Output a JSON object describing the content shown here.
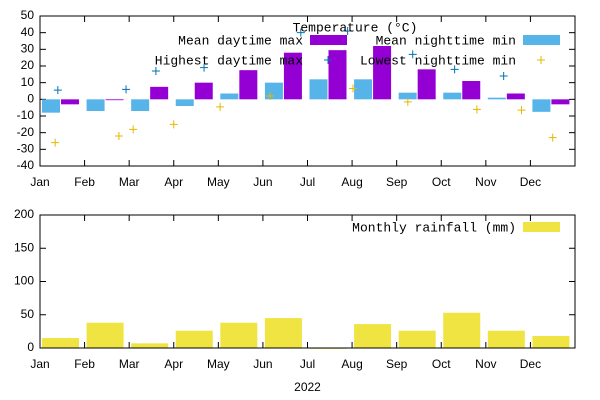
{
  "chart_data": [
    {
      "type": "bar",
      "title": "Temperature (°C)",
      "categories": [
        "Jan",
        "Feb",
        "Mar",
        "Apr",
        "May",
        "Jun",
        "Jul",
        "Aug",
        "Sep",
        "Oct",
        "Nov",
        "Dec"
      ],
      "ylim": [
        -40,
        50
      ],
      "yticks": [
        -40,
        -30,
        -20,
        -10,
        0,
        10,
        20,
        30,
        40,
        50
      ],
      "series": [
        {
          "name": "Mean daytime max",
          "mark": "bar",
          "color": "#9400d3",
          "values": [
            -3,
            -0.5,
            7.5,
            10,
            17.5,
            28,
            29.5,
            32,
            18,
            11,
            3.5,
            -3
          ]
        },
        {
          "name": "Mean nighttime min",
          "mark": "bar",
          "color": "#56b4e9",
          "values": [
            -8,
            -7,
            -7,
            -4,
            3.5,
            10,
            12,
            12,
            4,
            4,
            1,
            -7.5
          ]
        },
        {
          "name": "Highest daytime max",
          "mark": "point",
          "color": "#0072b2",
          "x": [
            0.4,
            1.93,
            2.6,
            3.68,
            5.85,
            6.9,
            8.36,
            9.3,
            10.4
          ],
          "values": [
            5.5,
            6,
            17,
            19,
            40,
            41,
            27,
            18,
            14
          ]
        },
        {
          "name": "Lowest nighttime min",
          "mark": "point",
          "color": "#e6b800",
          "x": [
            0.34,
            1.77,
            2.09,
            3.0,
            4.04,
            5.16,
            7.02,
            8.25,
            9.8,
            10.8,
            11.5
          ],
          "values": [
            -26,
            -22,
            -18,
            -15,
            -4.5,
            2,
            6.5,
            -1.5,
            -6,
            -6.5,
            -23
          ]
        }
      ]
    },
    {
      "type": "bar",
      "xlabel": "2022",
      "categories": [
        "Jan",
        "Feb",
        "Mar",
        "Apr",
        "May",
        "Jun",
        "Jul",
        "Aug",
        "Sep",
        "Oct",
        "Nov",
        "Dec"
      ],
      "ylim": [
        0,
        200
      ],
      "yticks": [
        0,
        50,
        100,
        150,
        200
      ],
      "series": [
        {
          "name": "Monthly rainfall (mm)",
          "mark": "bar",
          "color": "#f0e442",
          "values": [
            15,
            38,
            7,
            26,
            38,
            45,
            0,
            36,
            26,
            53,
            26,
            18
          ]
        }
      ]
    }
  ]
}
